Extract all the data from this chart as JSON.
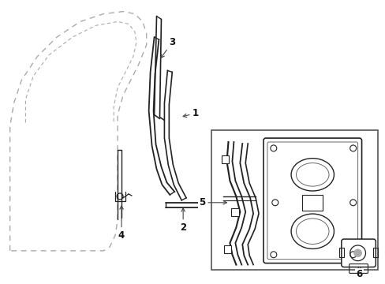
{
  "background_color": "#ffffff",
  "line_color": "#222222",
  "dashed_color": "#aaaaaa",
  "figsize": [
    4.89,
    3.6
  ],
  "dpi": 100
}
